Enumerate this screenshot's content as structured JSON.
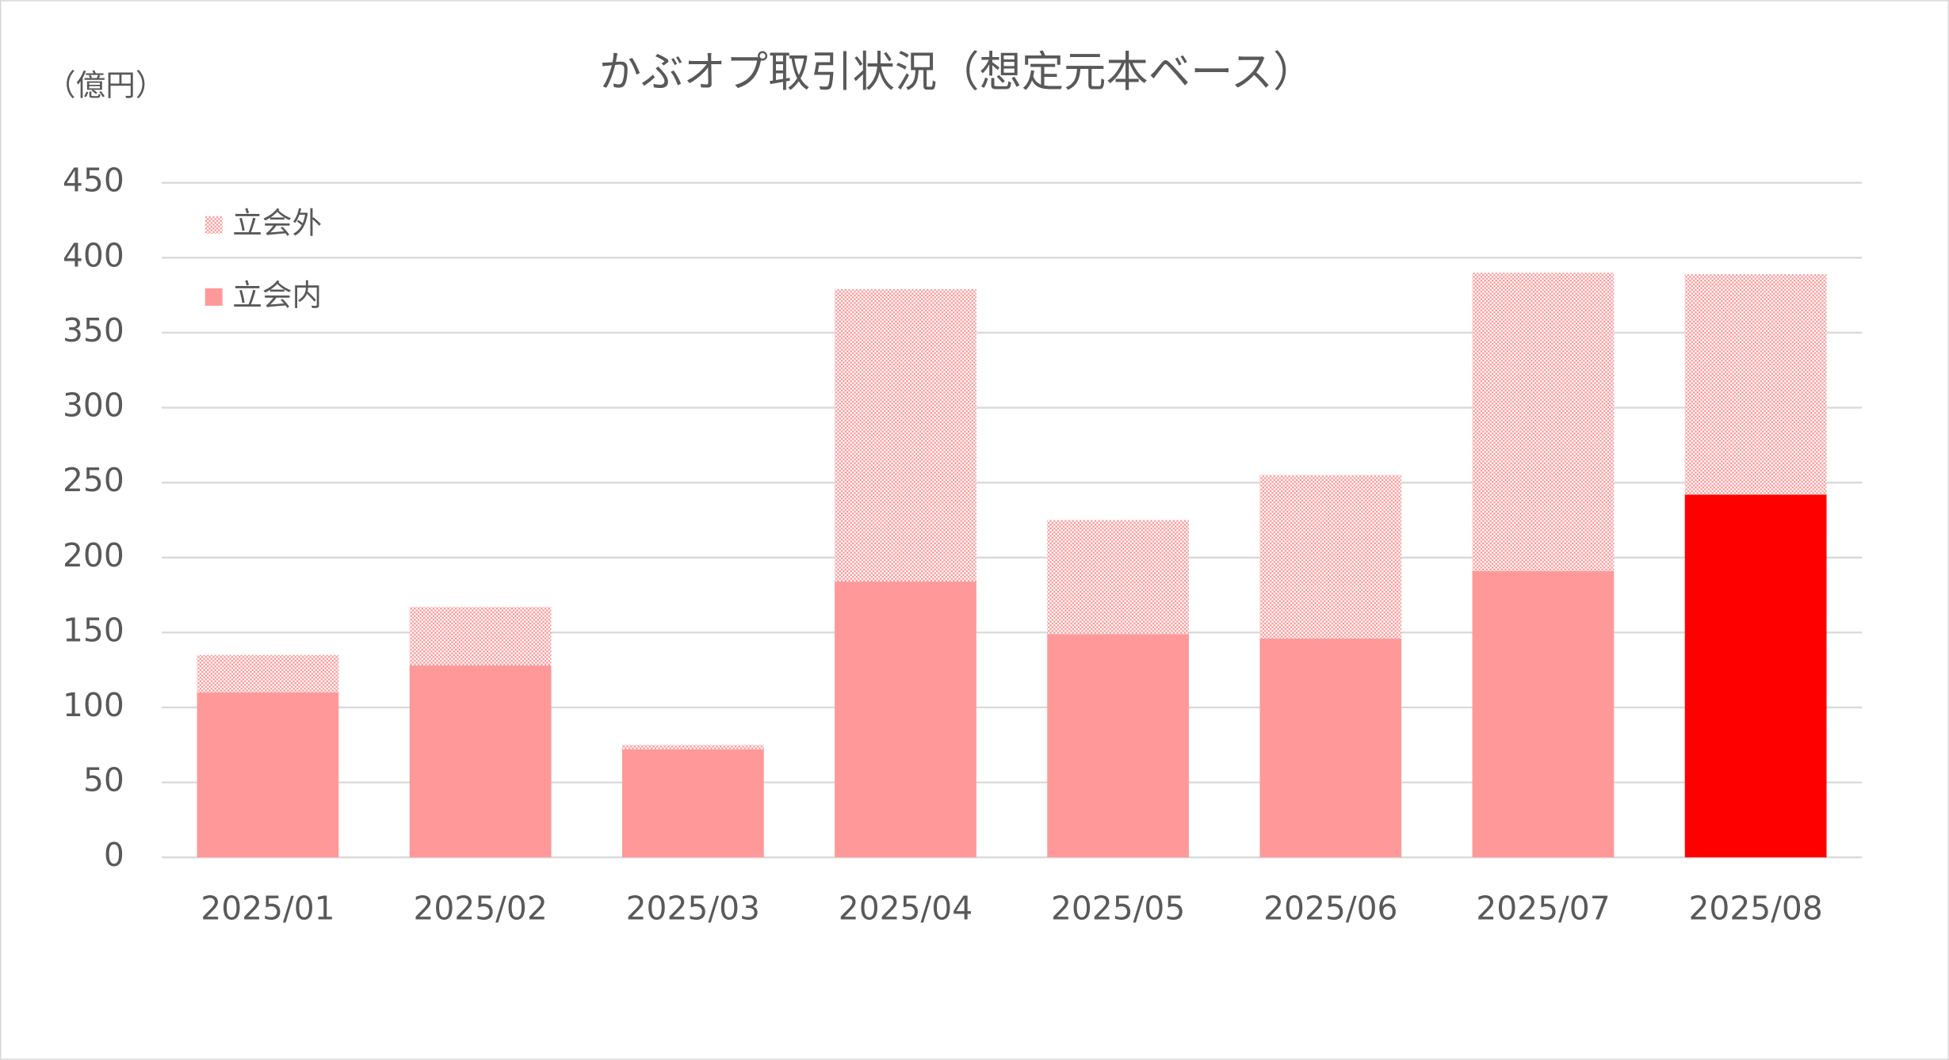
{
  "chart_data": {
    "type": "stacked_bar",
    "title": "かぶオプ取引状況（想定元本ベース）",
    "y_label": "（億円）",
    "categories": [
      "2025/01",
      "2025/02",
      "2025/03",
      "2025/04",
      "2025/05",
      "2025/06",
      "2025/07",
      "2025/08"
    ],
    "series": [
      {
        "name": "立会内",
        "color": "#ff9999",
        "colors": [
          "#ff9999",
          "#ff9999",
          "#ff9999",
          "#ff9999",
          "#ff9999",
          "#ff9999",
          "#ff9999",
          "#ff0000"
        ],
        "values": [
          110,
          128,
          72,
          184,
          149,
          146,
          191,
          242
        ]
      },
      {
        "name": "立会外",
        "color": "#ff9999",
        "pattern": "dotted",
        "values": [
          25,
          39,
          3,
          195,
          76,
          109,
          199,
          147
        ]
      }
    ],
    "ylim": [
      0,
      450
    ],
    "yticks": [
      0,
      50,
      100,
      150,
      200,
      250,
      300,
      350,
      400,
      450
    ],
    "grid": true,
    "legend": "upper left"
  }
}
